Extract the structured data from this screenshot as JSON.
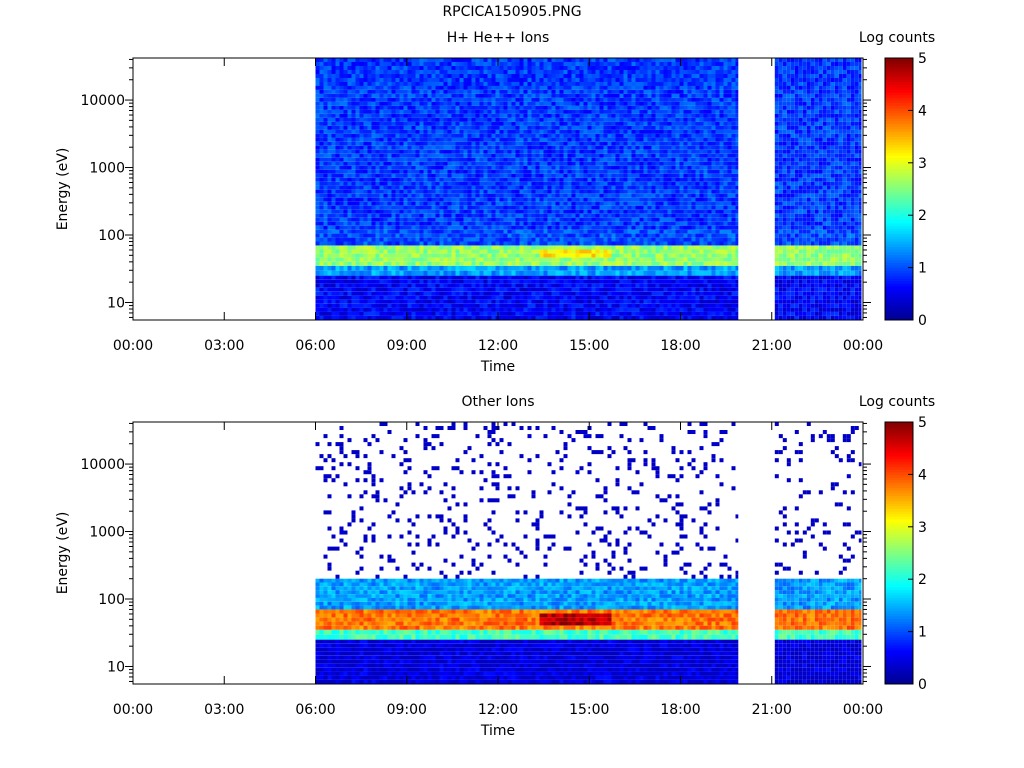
{
  "figure_title": "RPCICA150905.PNG",
  "colorbar": {
    "label": "Log counts",
    "ticks": [
      "0",
      "1",
      "2",
      "3",
      "4",
      "5"
    ],
    "range": [
      0,
      5
    ],
    "colormap": [
      "#00008f",
      "#0000ff",
      "#0080ff",
      "#00ffff",
      "#80ff80",
      "#ffff00",
      "#ff8000",
      "#ff0000",
      "#800000"
    ]
  },
  "chart_data": [
    {
      "type": "heatmap",
      "title": "H+ He++ Ions",
      "xlabel": "Time",
      "ylabel": "Energy (eV)",
      "x_ticks": [
        "00:00",
        "03:00",
        "06:00",
        "09:00",
        "12:00",
        "15:00",
        "18:00",
        "21:00",
        "00:00"
      ],
      "xlim_hours": [
        0,
        24
      ],
      "y_scale": "log",
      "y_ticks": [
        "10",
        "100",
        "1000",
        "10000"
      ],
      "ylim": [
        5.5,
        42000
      ],
      "data_intervals_hours": [
        [
          6.0,
          19.9
        ],
        [
          21.1,
          23.95
        ]
      ],
      "bands": [
        {
          "energy_range": [
            5.5,
            25
          ],
          "log_counts": 0.6
        },
        {
          "energy_range": [
            25,
            35
          ],
          "log_counts": 1.4
        },
        {
          "energy_range": [
            35,
            70
          ],
          "log_counts": 2.6
        },
        {
          "energy_range": [
            70,
            120
          ],
          "log_counts": 1.0
        },
        {
          "energy_range": [
            120,
            42000
          ],
          "log_counts": 0.9
        }
      ],
      "features": [
        {
          "time_range": [
            13.3,
            15.6
          ],
          "energy_range": [
            45,
            60
          ],
          "log_counts": 3.2
        }
      ]
    },
    {
      "type": "heatmap",
      "title": "Other Ions",
      "xlabel": "Time",
      "ylabel": "Energy (eV)",
      "x_ticks": [
        "00:00",
        "03:00",
        "06:00",
        "09:00",
        "12:00",
        "15:00",
        "18:00",
        "21:00",
        "00:00"
      ],
      "xlim_hours": [
        0,
        24
      ],
      "y_scale": "log",
      "y_ticks": [
        "10",
        "100",
        "1000",
        "10000"
      ],
      "ylim": [
        5.5,
        42000
      ],
      "data_intervals_hours": [
        [
          6.0,
          19.9
        ],
        [
          21.1,
          23.95
        ]
      ],
      "bands": [
        {
          "energy_range": [
            5.5,
            25
          ],
          "log_counts": 0.4
        },
        {
          "energy_range": [
            25,
            35
          ],
          "log_counts": 2.2
        },
        {
          "energy_range": [
            35,
            70
          ],
          "log_counts": 3.8
        },
        {
          "energy_range": [
            70,
            200
          ],
          "log_counts": 1.4
        },
        {
          "energy_range": [
            200,
            42000
          ],
          "log_counts": 0.1
        }
      ],
      "features": [
        {
          "time_range": [
            13.3,
            15.6
          ],
          "energy_range": [
            40,
            65
          ],
          "log_counts": 4.7
        }
      ]
    }
  ]
}
